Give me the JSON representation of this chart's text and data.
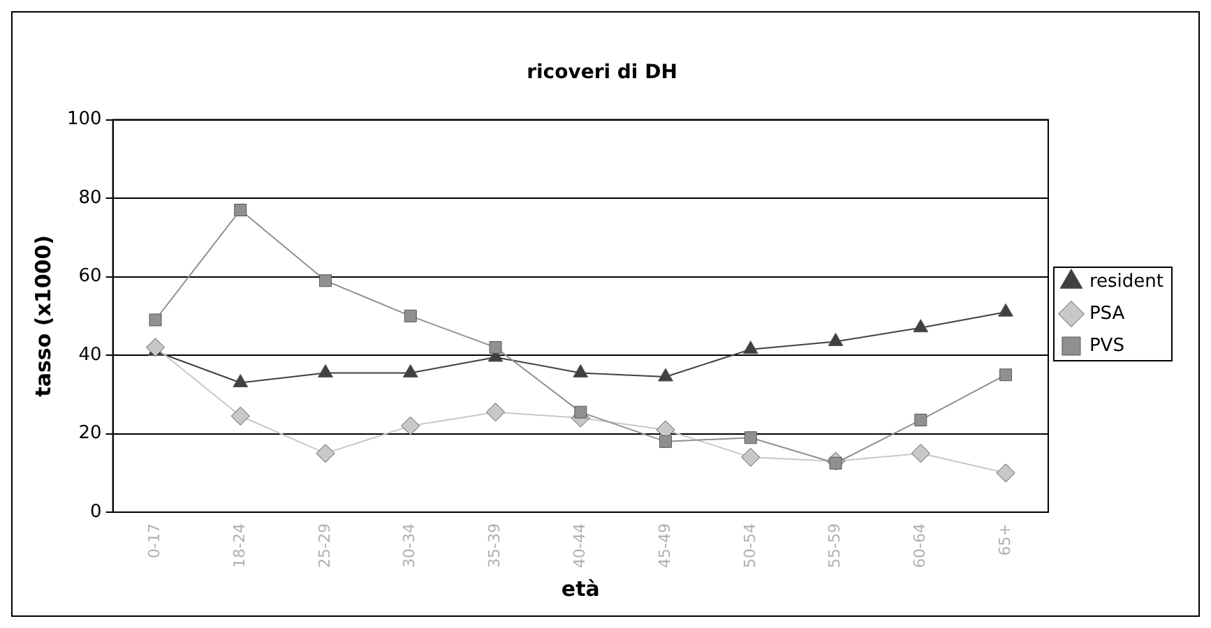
{
  "chart_data": {
    "type": "line",
    "title": "ricoveri di DH",
    "xlabel": "età",
    "ylabel": "tasso (x1000)",
    "categories": [
      "0-17",
      "18-24",
      "25-29",
      "30-34",
      "35-39",
      "40-44",
      "45-49",
      "50-54",
      "55-59",
      "60-64",
      "65+"
    ],
    "series": [
      {
        "name": "resident",
        "color": "#404040",
        "marker": "triangle",
        "values": [
          41,
          33,
          35.5,
          35.5,
          39.5,
          35.5,
          34.5,
          41.5,
          43.5,
          47,
          51
        ]
      },
      {
        "name": "PSA",
        "color": "#c8c8c8",
        "marker": "diamond",
        "values": [
          42,
          24.5,
          15,
          22,
          25.5,
          24,
          21,
          14,
          13,
          15,
          10
        ]
      },
      {
        "name": "PVS",
        "color": "#909090",
        "marker": "square",
        "values": [
          49,
          77,
          59,
          50,
          42,
          25.5,
          18,
          19,
          12.5,
          23.5,
          35
        ]
      }
    ],
    "ylim": [
      0,
      100
    ],
    "yticks": [
      0,
      20,
      40,
      60,
      80,
      100
    ],
    "grid": "y",
    "legend": "right"
  }
}
